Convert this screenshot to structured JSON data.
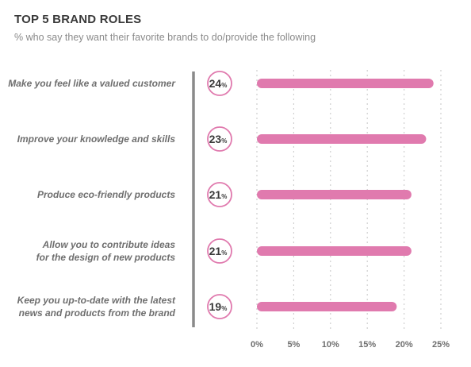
{
  "colors": {
    "bar": "#e07aae",
    "badge_border": "#e07aae",
    "divider": "#8a8a8a",
    "grid": "#cfcfcf"
  },
  "chart_data": {
    "type": "bar",
    "orientation": "horizontal",
    "title": "TOP 5 BRAND ROLES",
    "subtitle": "% who say they want their favorite brands to do/provide the following",
    "categories": [
      [
        "Make you feel like a valued customer"
      ],
      [
        "Improve your knowledge and skills"
      ],
      [
        "Produce eco-friendly products"
      ],
      [
        "Allow you to contribute ideas",
        "for the design of new products"
      ],
      [
        "Keep you up-to-date with the latest",
        "news and products from the brand"
      ]
    ],
    "values": [
      24,
      23,
      21,
      21,
      19
    ],
    "value_labels": [
      "24",
      "23",
      "21",
      "21",
      "19"
    ],
    "value_suffix": "%",
    "xlim": [
      0,
      25
    ],
    "xticks": [
      0,
      5,
      10,
      15,
      20,
      25
    ],
    "xtick_labels": [
      "0%",
      "5%",
      "10%",
      "15%",
      "20%",
      "25%"
    ],
    "grid": "vertical-dotted",
    "legend": "none"
  }
}
